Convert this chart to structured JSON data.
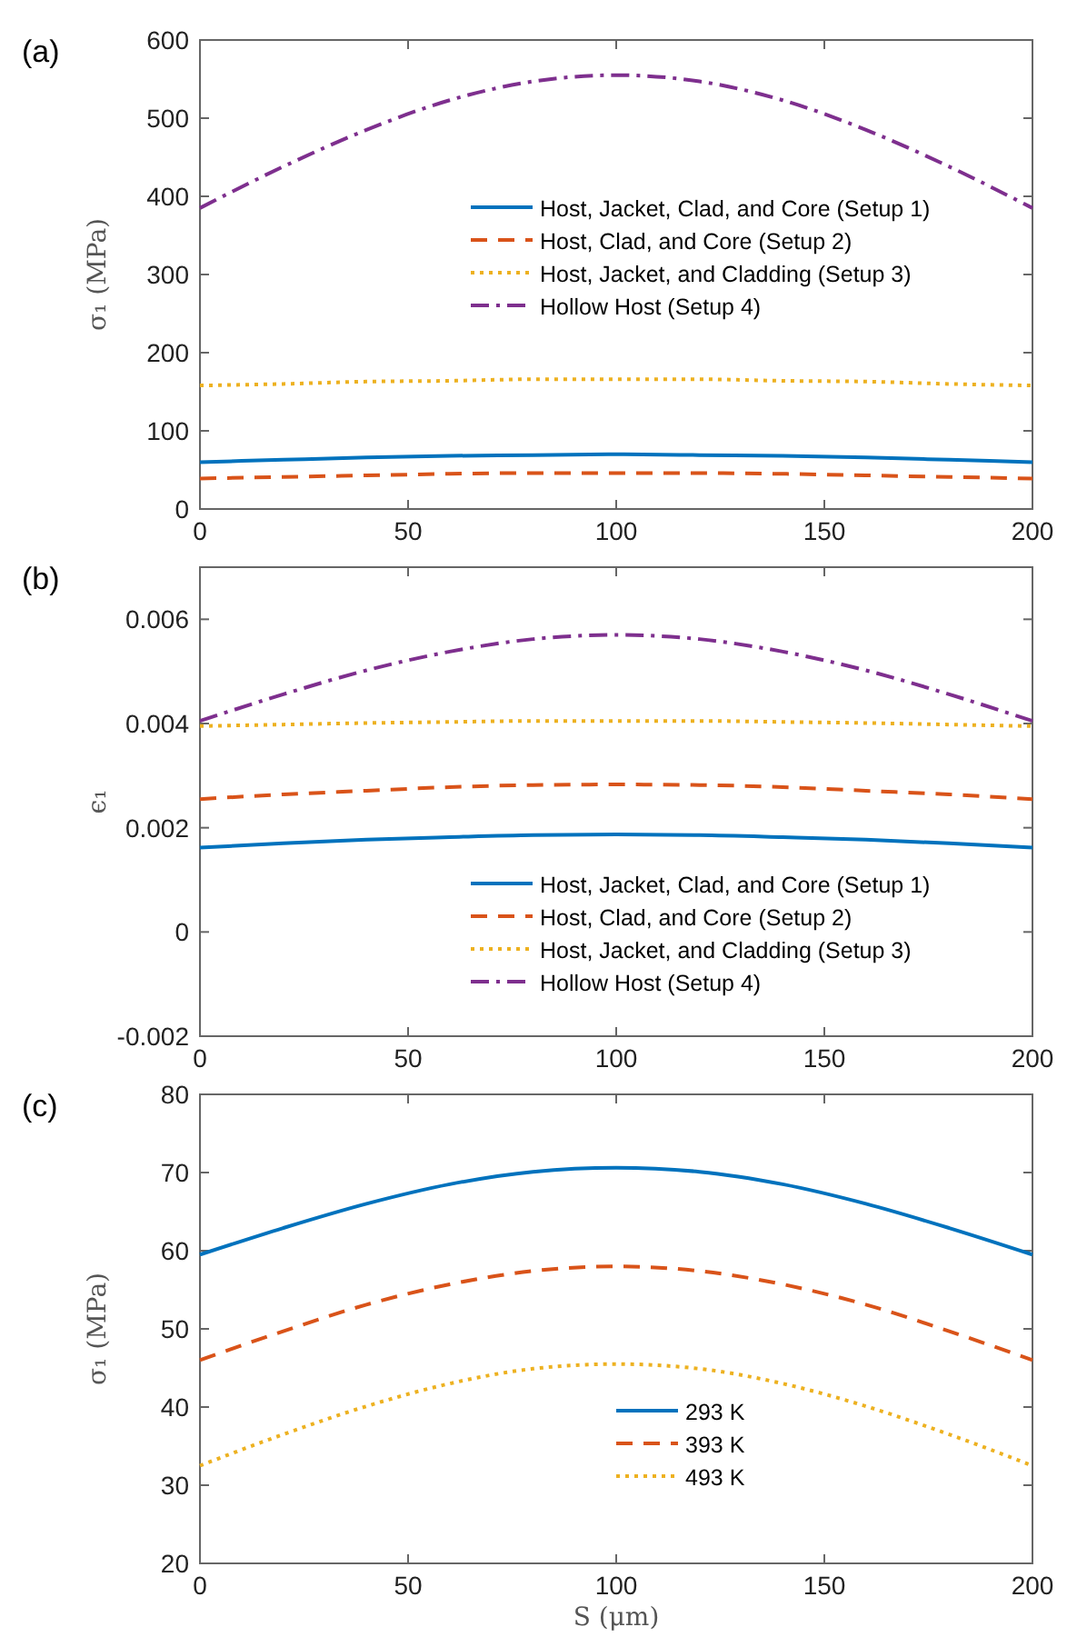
{
  "chart_data": [
    {
      "type": "line",
      "title": "(a)",
      "ylabel": "σ₁ (MPa)",
      "x": [
        0,
        20,
        40,
        60,
        80,
        100,
        120,
        140,
        160,
        180,
        200
      ],
      "xlim": [
        0,
        200
      ],
      "xticks": [
        0,
        50,
        100,
        150,
        200
      ],
      "ylim": [
        0,
        600
      ],
      "yticks": [
        0,
        100,
        200,
        300,
        400,
        500,
        600
      ],
      "grid": false,
      "legend": "center",
      "series": [
        {
          "name": "Host, Jacket, Clad, and Core (Setup 1)",
          "color": "#0072bd",
          "line_style": "solid",
          "values": [
            60,
            63,
            66,
            68,
            69,
            70,
            69,
            68,
            66,
            63,
            60
          ]
        },
        {
          "name": "Host, Clad, and Core (Setup 2)",
          "color": "#d95319",
          "line_style": "dashed",
          "values": [
            39,
            41,
            43,
            45,
            46,
            46,
            46,
            45,
            43,
            41,
            39
          ]
        },
        {
          "name": "Host, Jacket, and Cladding (Setup 3)",
          "color": "#edb120",
          "line_style": "dotted",
          "values": [
            158,
            160,
            163,
            164,
            166,
            166,
            166,
            164,
            163,
            160,
            158
          ]
        },
        {
          "name": "Hollow Host (Setup 4)",
          "color": "#7e2f8e",
          "line_style": "dashdot",
          "values": [
            385,
            438,
            485,
            523,
            547,
            555,
            547,
            523,
            485,
            438,
            385
          ]
        }
      ]
    },
    {
      "type": "line",
      "title": "(b)",
      "ylabel": "ϵ₁",
      "x": [
        0,
        20,
        40,
        60,
        80,
        100,
        120,
        140,
        160,
        180,
        200
      ],
      "xlim": [
        0,
        200
      ],
      "xticks": [
        0,
        50,
        100,
        150,
        200
      ],
      "ylim": [
        -0.002,
        0.007
      ],
      "yticks": [
        -0.002,
        0,
        0.002,
        0.004,
        0.006
      ],
      "grid": false,
      "legend": "bottom",
      "series": [
        {
          "name": "Host, Jacket, Clad, and Core (Setup 1)",
          "color": "#0072bd",
          "line_style": "solid",
          "values": [
            0.00162,
            0.0017,
            0.00177,
            0.00182,
            0.00186,
            0.00187,
            0.00186,
            0.00182,
            0.00177,
            0.0017,
            0.00162
          ]
        },
        {
          "name": "Host, Clad, and Core (Setup 2)",
          "color": "#d95319",
          "line_style": "dashed",
          "values": [
            0.00255,
            0.00264,
            0.00271,
            0.00278,
            0.00282,
            0.00283,
            0.00282,
            0.00278,
            0.00271,
            0.00264,
            0.00255
          ]
        },
        {
          "name": "Host, Jacket, and Cladding (Setup 3)",
          "color": "#edb120",
          "line_style": "dotted",
          "values": [
            0.00395,
            0.00398,
            0.00401,
            0.00403,
            0.00405,
            0.00405,
            0.00405,
            0.00403,
            0.00401,
            0.00398,
            0.00395
          ]
        },
        {
          "name": "Hollow Host (Setup 4)",
          "color": "#7e2f8e",
          "line_style": "dashdot",
          "values": [
            0.00405,
            0.00456,
            0.00502,
            0.00538,
            0.00562,
            0.0057,
            0.00562,
            0.00538,
            0.00502,
            0.00456,
            0.00405
          ]
        }
      ]
    },
    {
      "type": "line",
      "title": "(c)",
      "xlabel": "S (μm)",
      "ylabel": "σ₁ (MPa)",
      "x": [
        0,
        20,
        40,
        60,
        80,
        100,
        120,
        140,
        160,
        180,
        200
      ],
      "xlim": [
        0,
        200
      ],
      "xticks": [
        0,
        50,
        100,
        150,
        200
      ],
      "ylim": [
        20,
        80
      ],
      "yticks": [
        20,
        30,
        40,
        50,
        60,
        70,
        80
      ],
      "grid": false,
      "legend": "bottom",
      "series": [
        {
          "name": "293 K",
          "color": "#0072bd",
          "line_style": "solid",
          "values": [
            59.5,
            62.9,
            66.0,
            68.5,
            70.1,
            70.6,
            70.1,
            68.5,
            66.0,
            62.9,
            59.5
          ]
        },
        {
          "name": "393 K",
          "color": "#d95319",
          "line_style": "dashed",
          "values": [
            46,
            49.7,
            53.1,
            55.7,
            57.4,
            58,
            57.4,
            55.7,
            53.1,
            49.7,
            46
          ]
        },
        {
          "name": "493 K",
          "color": "#edb120",
          "line_style": "dotted",
          "values": [
            32.5,
            36.5,
            40.1,
            43,
            44.9,
            45.5,
            44.9,
            43,
            40.1,
            36.5,
            32.5
          ]
        }
      ]
    }
  ]
}
